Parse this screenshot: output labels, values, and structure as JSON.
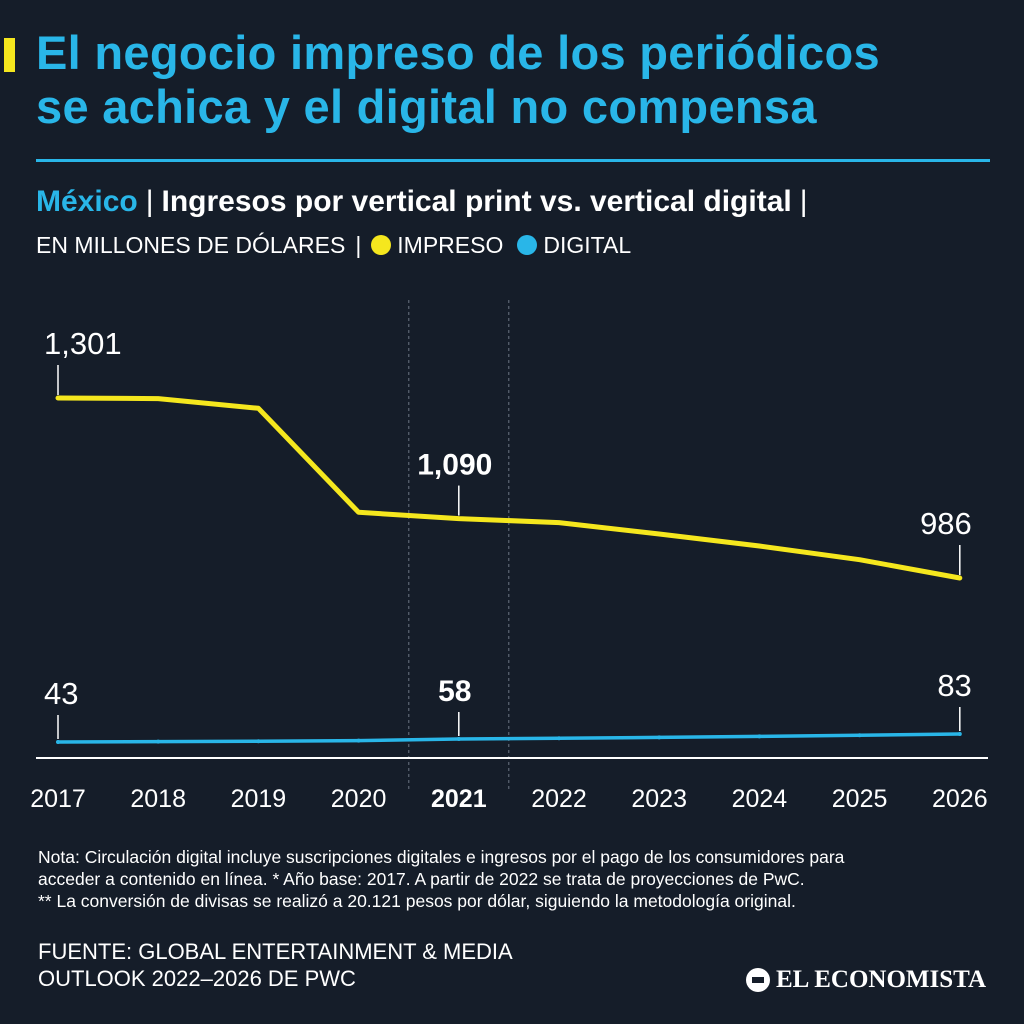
{
  "header": {
    "title_line1": "El negocio impreso de los periódicos",
    "title_line2": "se achica y el digital no compensa",
    "region": "México",
    "subtitle": "Ingresos por vertical print vs. vertical digital",
    "separator": "|",
    "units": "EN MILLONES DE DÓLARES"
  },
  "legend": [
    {
      "label": "IMPRESO",
      "color": "#f5e71e"
    },
    {
      "label": "DIGITAL",
      "color": "#29b6e8"
    }
  ],
  "chart_data": {
    "type": "line",
    "x": [
      "2017",
      "2018",
      "2019",
      "2020",
      "2021",
      "2022",
      "2023",
      "2024",
      "2025",
      "2026"
    ],
    "highlight_category": "2021",
    "series": [
      {
        "name": "IMPRESO",
        "color": "#f5e71e",
        "values": [
          1301,
          1300,
          1283,
          1101,
          1090,
          1083,
          1063,
          1042,
          1018,
          986
        ],
        "labels": {
          "0": "1,301",
          "4": "1,090",
          "9": "986"
        }
      },
      {
        "name": "DIGITAL",
        "color": "#29b6e8",
        "values": [
          43,
          45,
          47,
          50,
          58,
          62,
          66,
          71,
          77,
          83
        ],
        "labels": {
          "0": "43",
          "4": "58",
          "9": "83"
        }
      }
    ],
    "grid": false
  },
  "notes": {
    "line1": "Nota: Circulación digital incluye suscripciones digitales e ingresos por el pago de los consumidores para",
    "line2": "acceder a contenido en línea. * Año base: 2017. A partir de 2022 se trata de proyecciones de PwC.",
    "line3": "** La conversión de divisas se realizó a 20.121 pesos por dólar, siguiendo la metodología original."
  },
  "source": {
    "line1": "FUENTE: GLOBAL ENTERTAINMENT & MEDIA",
    "line2": "OUTLOOK 2022–2026 DE PWC"
  },
  "brand": {
    "name": "EL ECONOMISTA"
  }
}
